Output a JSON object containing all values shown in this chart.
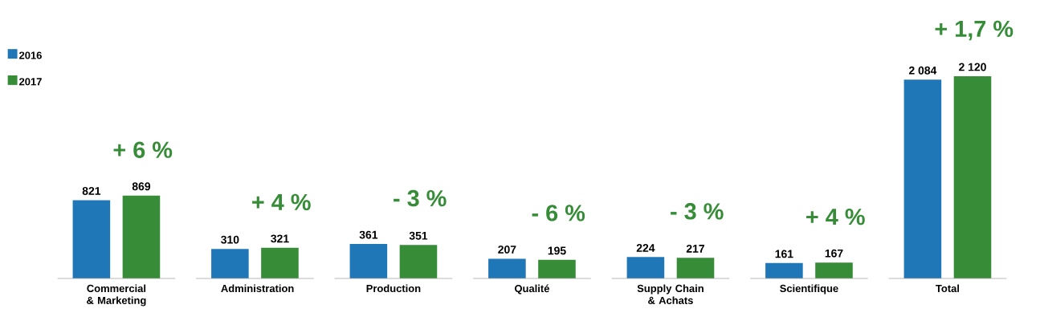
{
  "chart_data": {
    "type": "bar",
    "categories": [
      "Commercial & Marketing",
      "Administration",
      "Production",
      "Qualité",
      "Supply Chain & Achats",
      "Scientifique",
      "Total"
    ],
    "series": [
      {
        "name": "2016",
        "color": "#1f77b8",
        "values": [
          821,
          310,
          361,
          207,
          224,
          161,
          2084
        ],
        "value_labels": [
          "821",
          "310",
          "361",
          "207",
          "224",
          "161",
          "2 084"
        ]
      },
      {
        "name": "2017",
        "color": "#368c37",
        "values": [
          869,
          321,
          351,
          195,
          217,
          167,
          2120
        ],
        "value_labels": [
          "869",
          "321",
          "351",
          "195",
          "217",
          "167",
          "2 120"
        ]
      }
    ],
    "annotations": [
      "+ 6 %",
      "+ 4 %",
      "- 3 %",
      "- 6 %",
      "- 3 %",
      "+ 4 %",
      "+ 1,7 %"
    ],
    "legend": "top left"
  }
}
